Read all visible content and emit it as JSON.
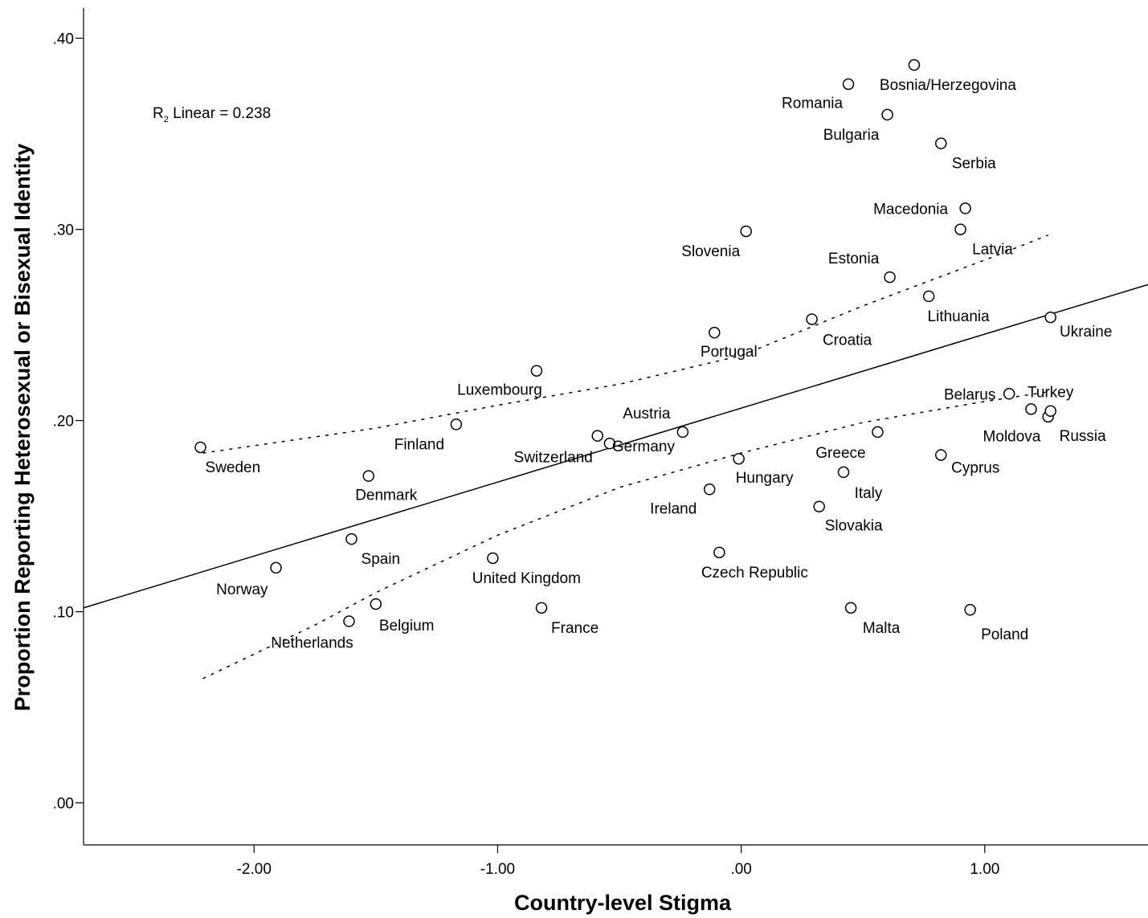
{
  "chart_data": {
    "type": "scatter",
    "title": "",
    "xlabel": "Country-level Stigma",
    "ylabel": "Proportion Reporting Heterosexual or Bisexual Identity",
    "xlim": [
      -2.7,
      1.67
    ],
    "ylim": [
      -0.022,
      0.42
    ],
    "x_ticks": [
      -2.0,
      -1.0,
      0.0,
      1.0
    ],
    "x_tick_labels": [
      "-2.00",
      "-1.00",
      ".00",
      "1.00"
    ],
    "y_ticks": [
      0.0,
      0.1,
      0.2,
      0.3,
      0.4
    ],
    "y_tick_labels": [
      ".00",
      ".10",
      ".20",
      ".30",
      ".40"
    ],
    "grid": false,
    "annotation": {
      "prefix": "R",
      "sub": "2",
      "text": " Linear = 0.238"
    },
    "fit_line": {
      "type": "linear",
      "intercept": 0.2065,
      "slope": 0.0387
    },
    "confidence_band": {
      "upper": [
        [
          -2.21,
          0.183
        ],
        [
          -1.5,
          0.196
        ],
        [
          -1.0,
          0.208
        ],
        [
          -0.5,
          0.219
        ],
        [
          0.0,
          0.234
        ],
        [
          0.5,
          0.26
        ],
        [
          1.0,
          0.284
        ],
        [
          1.26,
          0.297
        ]
      ],
      "lower": [
        [
          -2.21,
          0.065
        ],
        [
          -1.75,
          0.093
        ],
        [
          -1.5,
          0.11
        ],
        [
          -1.0,
          0.14
        ],
        [
          -0.5,
          0.165
        ],
        [
          0.0,
          0.183
        ],
        [
          0.5,
          0.199
        ],
        [
          1.0,
          0.21
        ],
        [
          1.26,
          0.215
        ]
      ]
    },
    "points": [
      {
        "label": "Sweden",
        "x": -2.22,
        "y": 0.186
      },
      {
        "label": "Norway",
        "x": -1.91,
        "y": 0.123
      },
      {
        "label": "Denmark",
        "x": -1.53,
        "y": 0.171
      },
      {
        "label": "Spain",
        "x": -1.6,
        "y": 0.138
      },
      {
        "label": "Netherlands",
        "x": -1.61,
        "y": 0.095
      },
      {
        "label": "Belgium",
        "x": -1.5,
        "y": 0.104
      },
      {
        "label": "Finland",
        "x": -1.17,
        "y": 0.198
      },
      {
        "label": "United Kingdom",
        "x": -1.02,
        "y": 0.128
      },
      {
        "label": "Luxembourg",
        "x": -0.84,
        "y": 0.226
      },
      {
        "label": "France",
        "x": -0.82,
        "y": 0.102
      },
      {
        "label": "Switzerland",
        "x": -0.59,
        "y": 0.192
      },
      {
        "label": "Germany",
        "x": -0.54,
        "y": 0.188
      },
      {
        "label": "Austria",
        "x": -0.24,
        "y": 0.194
      },
      {
        "label": "Ireland",
        "x": -0.13,
        "y": 0.164
      },
      {
        "label": "Portugal",
        "x": -0.11,
        "y": 0.246
      },
      {
        "label": "Czech Republic",
        "x": -0.09,
        "y": 0.131
      },
      {
        "label": "Hungary",
        "x": -0.01,
        "y": 0.18
      },
      {
        "label": "Slovenia",
        "x": 0.02,
        "y": 0.299
      },
      {
        "label": "Croatia",
        "x": 0.29,
        "y": 0.253
      },
      {
        "label": "Slovakia",
        "x": 0.32,
        "y": 0.155
      },
      {
        "label": "Italy",
        "x": 0.42,
        "y": 0.173
      },
      {
        "label": "Romania",
        "x": 0.44,
        "y": 0.376
      },
      {
        "label": "Malta",
        "x": 0.45,
        "y": 0.102
      },
      {
        "label": "Greece",
        "x": 0.56,
        "y": 0.194
      },
      {
        "label": "Bulgaria",
        "x": 0.6,
        "y": 0.36
      },
      {
        "label": "Estonia",
        "x": 0.61,
        "y": 0.275
      },
      {
        "label": "Bosnia/Herzegovina",
        "x": 0.71,
        "y": 0.386
      },
      {
        "label": "Lithuania",
        "x": 0.77,
        "y": 0.265
      },
      {
        "label": "Serbia",
        "x": 0.82,
        "y": 0.345
      },
      {
        "label": "Cyprus",
        "x": 0.82,
        "y": 0.182
      },
      {
        "label": "Latvia",
        "x": 0.9,
        "y": 0.3
      },
      {
        "label": "Macedonia",
        "x": 0.92,
        "y": 0.311
      },
      {
        "label": "Poland",
        "x": 0.94,
        "y": 0.101
      },
      {
        "label": "Belarus",
        "x": 1.1,
        "y": 0.214
      },
      {
        "label": "Moldova",
        "x": 1.19,
        "y": 0.206
      },
      {
        "label": "Russia",
        "x": 1.26,
        "y": 0.202
      },
      {
        "label": "Turkey",
        "x": 1.27,
        "y": 0.205
      },
      {
        "label": "Ukraine",
        "x": 1.27,
        "y": 0.254
      }
    ]
  }
}
